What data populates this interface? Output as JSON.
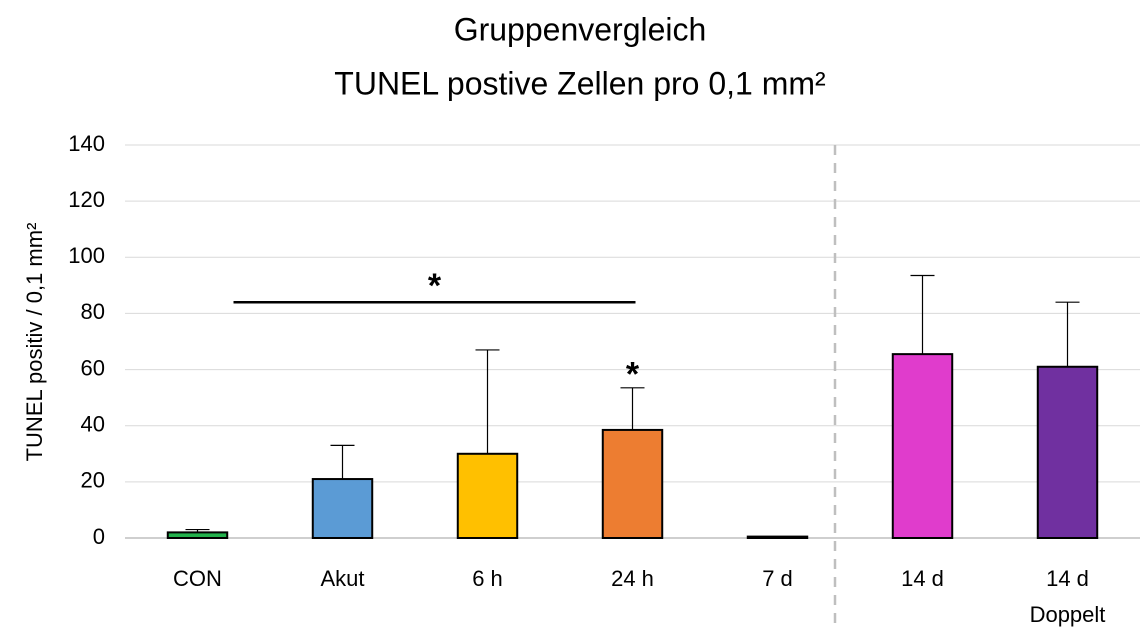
{
  "chart_data": {
    "type": "bar",
    "title": [
      "Gruppenvergleich",
      "TUNEL postive Zellen pro 0,1 mm²"
    ],
    "y_label": "TUNEL positiv / 0,1 mm²",
    "categories": [
      "CON",
      "Akut",
      "6 h",
      "24 h",
      "7 d",
      "14 d",
      [
        "14 d",
        "Doppelt"
      ]
    ],
    "values": [
      2,
      21,
      30,
      38.5,
      0.5,
      65.5,
      61
    ],
    "errors": [
      1,
      12,
      37,
      15,
      0,
      28,
      23
    ],
    "colors": [
      "#22b14c",
      "#5b9bd5",
      "#ffc000",
      "#ed7d31",
      "#404040",
      "#e03ccc",
      "#7030a0"
    ],
    "ylim": [
      0,
      140
    ],
    "yticks": [
      0,
      20,
      40,
      60,
      80,
      100,
      120,
      140
    ],
    "grid": true,
    "annotations": [
      "*",
      "*"
    ]
  }
}
